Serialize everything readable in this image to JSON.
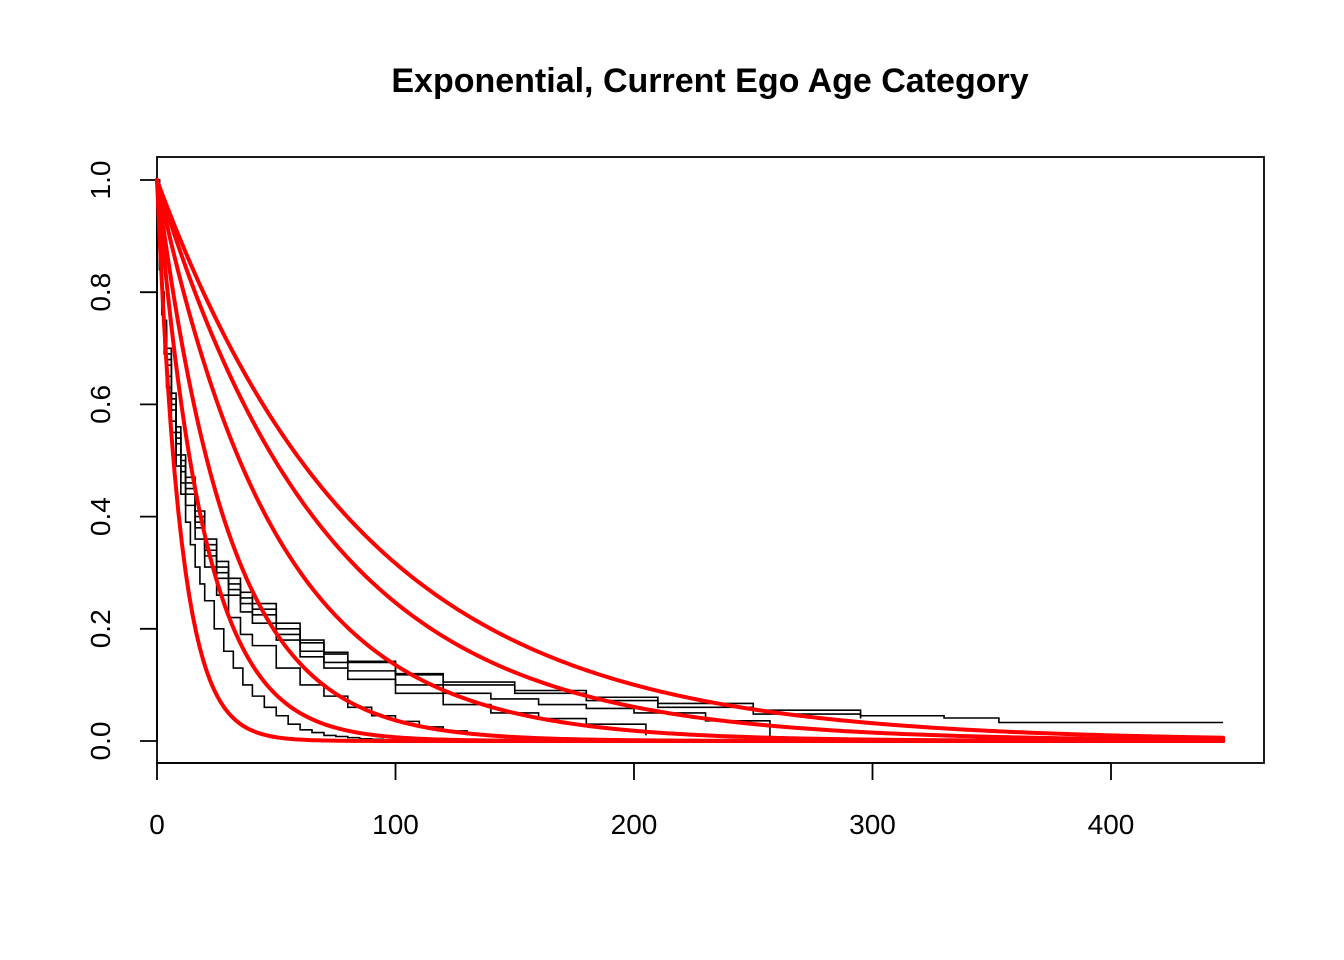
{
  "chart_data": {
    "type": "line",
    "title": "Exponential, Current Ego Age Category",
    "xlabel": "",
    "ylabel": "",
    "xlim": [
      0,
      447
    ],
    "ylim": [
      0,
      1
    ],
    "x_ticks": [
      "0",
      "100",
      "200",
      "300",
      "400"
    ],
    "y_ticks": [
      "0.0",
      "0.2",
      "0.4",
      "0.6",
      "0.8",
      "1.0"
    ],
    "grid": false,
    "legend": "none",
    "colors": {
      "km": "#000000",
      "fit": "#ff0000"
    },
    "km_series": [
      {
        "x": [
          0,
          1,
          2,
          3,
          4,
          6,
          8,
          10,
          12,
          14,
          16,
          18,
          20,
          24,
          28,
          32,
          36,
          40,
          45,
          50,
          55,
          60,
          65,
          70,
          75,
          80,
          85,
          90,
          95,
          100
        ],
        "y": [
          1,
          0.84,
          0.76,
          0.69,
          0.63,
          0.55,
          0.49,
          0.44,
          0.39,
          0.35,
          0.31,
          0.28,
          0.25,
          0.2,
          0.16,
          0.13,
          0.1,
          0.08,
          0.06,
          0.045,
          0.03,
          0.02,
          0.015,
          0.01,
          0.008,
          0.006,
          0.004,
          0.003,
          0.002,
          0.001
        ]
      },
      {
        "x": [
          0,
          1,
          2,
          3,
          4,
          6,
          8,
          10,
          12,
          16,
          20,
          25,
          30,
          35,
          40,
          50,
          60,
          70,
          80,
          90,
          100,
          110,
          120,
          130,
          140,
          150,
          153
        ],
        "y": [
          1,
          0.85,
          0.77,
          0.71,
          0.65,
          0.57,
          0.51,
          0.46,
          0.42,
          0.36,
          0.31,
          0.26,
          0.22,
          0.19,
          0.17,
          0.13,
          0.1,
          0.08,
          0.06,
          0.045,
          0.035,
          0.025,
          0.018,
          0.012,
          0.008,
          0.006,
          0.006
        ]
      },
      {
        "x": [
          0,
          1,
          2,
          3,
          4,
          6,
          8,
          10,
          12,
          16,
          20,
          25,
          30,
          35,
          40,
          50,
          60,
          70,
          80,
          100,
          120,
          140,
          160,
          180,
          205
        ],
        "y": [
          1,
          0.86,
          0.78,
          0.72,
          0.67,
          0.59,
          0.53,
          0.48,
          0.44,
          0.38,
          0.33,
          0.29,
          0.26,
          0.23,
          0.21,
          0.18,
          0.15,
          0.13,
          0.11,
          0.085,
          0.065,
          0.05,
          0.04,
          0.03,
          0.01
        ]
      },
      {
        "x": [
          0,
          1,
          2,
          3,
          4,
          6,
          8,
          10,
          12,
          16,
          20,
          25,
          30,
          35,
          40,
          50,
          60,
          70,
          80,
          100,
          120,
          140,
          160,
          180,
          200,
          230,
          257
        ],
        "y": [
          1,
          0.86,
          0.79,
          0.73,
          0.68,
          0.6,
          0.54,
          0.49,
          0.45,
          0.39,
          0.34,
          0.3,
          0.27,
          0.245,
          0.225,
          0.19,
          0.16,
          0.14,
          0.125,
          0.1,
          0.085,
          0.075,
          0.065,
          0.058,
          0.05,
          0.036,
          0.002
        ]
      },
      {
        "x": [
          0,
          1,
          2,
          3,
          4,
          6,
          8,
          10,
          12,
          16,
          20,
          25,
          30,
          35,
          40,
          50,
          60,
          70,
          80,
          100,
          120,
          150,
          180,
          210,
          250,
          295,
          330,
          353,
          447
        ],
        "y": [
          1,
          0.87,
          0.8,
          0.74,
          0.69,
          0.61,
          0.55,
          0.5,
          0.46,
          0.4,
          0.35,
          0.31,
          0.28,
          0.255,
          0.235,
          0.2,
          0.175,
          0.155,
          0.14,
          0.12,
          0.105,
          0.09,
          0.078,
          0.067,
          0.055,
          0.045,
          0.041,
          0.033,
          0.033
        ]
      },
      {
        "x": [
          0,
          1,
          2,
          3,
          4,
          6,
          8,
          10,
          12,
          16,
          20,
          25,
          30,
          35,
          40,
          50,
          60,
          70,
          80,
          100,
          120,
          150,
          180,
          210,
          250,
          295
        ],
        "y": [
          1,
          0.87,
          0.8,
          0.75,
          0.7,
          0.62,
          0.56,
          0.51,
          0.47,
          0.41,
          0.36,
          0.32,
          0.29,
          0.265,
          0.245,
          0.21,
          0.18,
          0.158,
          0.142,
          0.118,
          0.1,
          0.085,
          0.072,
          0.06,
          0.048,
          0.04
        ]
      }
    ],
    "fit_series_rates": [
      0.1,
      0.05,
      0.033,
      0.02,
      0.014,
      0.0115
    ]
  }
}
